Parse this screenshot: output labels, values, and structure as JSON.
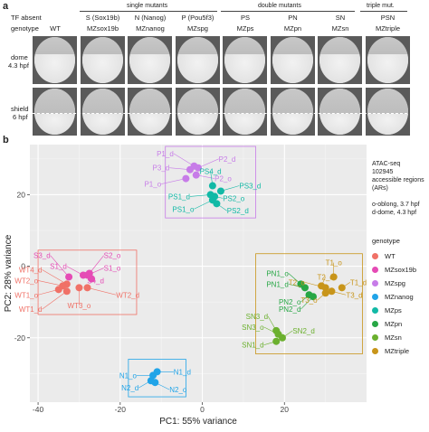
{
  "panel_a": {
    "letter": "a",
    "tf_absent_label": "TF absent",
    "genotype_label": "genotype",
    "group_single": "single mutants",
    "group_double": "double mutants",
    "group_triple": "triple mut.",
    "columns": [
      {
        "tf": "",
        "genotype": "WT"
      },
      {
        "tf": "S (Sox19b)",
        "genotype": "MZsox19b"
      },
      {
        "tf": "N (Nanog)",
        "genotype": "MZnanog"
      },
      {
        "tf": "P (Pou5f3)",
        "genotype": "MZspg"
      },
      {
        "tf": "PS",
        "genotype": "MZps"
      },
      {
        "tf": "PN",
        "genotype": "MZpn"
      },
      {
        "tf": "SN",
        "genotype": "MZsn"
      },
      {
        "tf": "PSN",
        "genotype": "MZtriple"
      }
    ],
    "rows": [
      {
        "label1": "dome",
        "label2": "4.3 hpf"
      },
      {
        "label1": "shield",
        "label2": "6 hpf"
      }
    ]
  },
  "panel_b": {
    "letter": "b",
    "legend_info": [
      "ATAC-seq",
      "102945",
      "accessible regions",
      "(ARs)",
      "",
      "o-oblong, 3.7 hpf",
      "d-dome, 4.3 hpf"
    ],
    "legend_title": "genotype"
  },
  "chart_data": {
    "type": "scatter",
    "xlabel": "PC1: 55% variance",
    "ylabel": "PC2: 28% variance",
    "xlim": [
      -42,
      40
    ],
    "ylim": [
      -38,
      34
    ],
    "xticks": [
      -40,
      -20,
      0,
      20
    ],
    "yticks": [
      -20,
      0,
      20
    ],
    "series": [
      {
        "name": "WT",
        "color": "#f07167",
        "points": [
          {
            "label": "WT4_d",
            "x": -33,
            "y": -5,
            "lx": -39,
            "ly": -1
          },
          {
            "label": "WT2_o",
            "x": -34,
            "y": -5.5,
            "lx": -40,
            "ly": -4
          },
          {
            "label": "WT1_o",
            "x": -35,
            "y": -6.5,
            "lx": -40,
            "ly": -8
          },
          {
            "label": "WT1_d",
            "x": -33,
            "y": -7,
            "lx": -39,
            "ly": -12
          },
          {
            "label": "WT3_o",
            "x": -30,
            "y": -6,
            "lx": -30,
            "ly": -11
          },
          {
            "label": "WT2_d",
            "x": -28,
            "y": -6,
            "lx": -21,
            "ly": -8
          }
        ]
      },
      {
        "name": "MZsox19b",
        "color": "#e54bb5",
        "points": [
          {
            "label": "S3_d",
            "x": -32.5,
            "y": -3,
            "lx": -37,
            "ly": 3
          },
          {
            "label": "S2_o",
            "x": -27.5,
            "y": -2,
            "lx": -24,
            "ly": 3
          },
          {
            "label": "S1_o",
            "x": -28,
            "y": -2.5,
            "lx": -24,
            "ly": -0.5
          },
          {
            "label": "S4_d",
            "x": -27,
            "y": -3.5,
            "lx": -26,
            "ly": -4
          },
          {
            "label": "S1_d",
            "x": -29,
            "y": -2.5,
            "lx": -33,
            "ly": 0
          }
        ]
      },
      {
        "name": "MZspg",
        "color": "#c77ce8",
        "points": [
          {
            "label": "P1_d",
            "x": -2,
            "y": 28,
            "lx": -7,
            "ly": 31.5
          },
          {
            "label": "P2_d",
            "x": -1,
            "y": 27.5,
            "lx": 4,
            "ly": 30
          },
          {
            "label": "P3_d",
            "x": -3,
            "y": 27,
            "lx": -8,
            "ly": 27.5
          },
          {
            "label": "P2_o",
            "x": -1.5,
            "y": 25.5,
            "lx": 3,
            "ly": 24.5
          },
          {
            "label": "P1_o",
            "x": -4,
            "y": 24.5,
            "lx": -10,
            "ly": 23
          }
        ]
      },
      {
        "name": "MZnanog",
        "color": "#20a4e8",
        "points": [
          {
            "label": "N1_o",
            "x": -12,
            "y": -30.5,
            "lx": -16,
            "ly": -30.5
          },
          {
            "label": "N1_d",
            "x": -11,
            "y": -29.5,
            "lx": -7,
            "ly": -29.5
          },
          {
            "label": "N2_d",
            "x": -12.5,
            "y": -32,
            "lx": -15.5,
            "ly": -34
          },
          {
            "label": "N2_o",
            "x": -11.5,
            "y": -32.5,
            "lx": -8,
            "ly": -34.5
          }
        ]
      },
      {
        "name": "MZps",
        "color": "#12b9a6",
        "points": [
          {
            "label": "PS4_d",
            "x": 2.5,
            "y": 22.5,
            "lx": 2,
            "ly": 26.5
          },
          {
            "label": "PS3_d",
            "x": 4.5,
            "y": 21,
            "lx": 9,
            "ly": 22.5
          },
          {
            "label": "PS1_d",
            "x": 2,
            "y": 20,
            "lx": -3,
            "ly": 19.5
          },
          {
            "label": "PS2_o",
            "x": 3,
            "y": 19.5,
            "lx": 5,
            "ly": 19
          },
          {
            "label": "PS1_o",
            "x": 2.5,
            "y": 18.5,
            "lx": -2,
            "ly": 16
          },
          {
            "label": "PS2_d",
            "x": 3.5,
            "y": 17.5,
            "lx": 6,
            "ly": 15.5
          }
        ]
      },
      {
        "name": "MZpn",
        "color": "#27a745",
        "points": [
          {
            "label": "PN1_o",
            "x": 24,
            "y": -5,
            "lx": 21,
            "ly": -2
          },
          {
            "label": "PN1_d",
            "x": 25,
            "y": -6,
            "lx": 21,
            "ly": -5
          },
          {
            "label": "PN2_o",
            "x": 26,
            "y": -8,
            "lx": 24,
            "ly": -10
          },
          {
            "label": "PN2_d",
            "x": 27,
            "y": -8.5,
            "lx": 24,
            "ly": -12
          }
        ]
      },
      {
        "name": "MZsn",
        "color": "#6bb02e",
        "points": [
          {
            "label": "SN3_d",
            "x": 18,
            "y": -18,
            "lx": 16,
            "ly": -14
          },
          {
            "label": "SN3_o",
            "x": 18.5,
            "y": -19,
            "lx": 15,
            "ly": -17
          },
          {
            "label": "SN2_d",
            "x": 19.5,
            "y": -20,
            "lx": 22,
            "ly": -18
          },
          {
            "label": "SN1_d",
            "x": 18,
            "y": -21,
            "lx": 15,
            "ly": -22
          }
        ]
      },
      {
        "name": "MZtriple",
        "color": "#c8951a",
        "points": [
          {
            "label": "T1_o",
            "x": 32,
            "y": -3,
            "lx": 32,
            "ly": 1
          },
          {
            "label": "T2_d",
            "x": 29,
            "y": -5.5,
            "lx": 30,
            "ly": -3
          },
          {
            "label": "T2_o",
            "x": 30,
            "y": -6,
            "lx": 25,
            "ly": -4.5
          },
          {
            "label": "T1_d",
            "x": 34,
            "y": -6,
            "lx": 36,
            "ly": -4.5
          },
          {
            "label": "T3_d",
            "x": 31.5,
            "y": -7,
            "lx": 35,
            "ly": -8
          },
          {
            "label": "T3_o",
            "x": 30,
            "y": -7.5,
            "lx": 28,
            "ly": -9.5
          }
        ]
      }
    ],
    "boxes": [
      {
        "series": "WT_S",
        "color": "#f07167",
        "x0": -40,
        "x1": -16,
        "y0": -13.5,
        "y1": 4.5
      },
      {
        "series": "P_PS",
        "color": "#c77ce8",
        "x0": -9,
        "x1": 13,
        "y0": 13.5,
        "y1": 33.5
      },
      {
        "series": "T_PN_SN",
        "color": "#c8951a",
        "x0": 13,
        "x1": 39,
        "y0": -24.5,
        "y1": 3.5
      },
      {
        "series": "N",
        "color": "#20a4e8",
        "x0": -18,
        "x1": -4,
        "y0": -36.5,
        "y1": -26
      }
    ]
  }
}
